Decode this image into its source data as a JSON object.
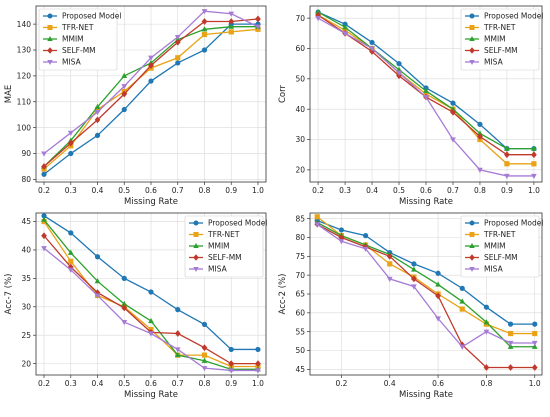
{
  "series_colors": {
    "Proposed Model": "#1f77b4",
    "TFR-NET": "#e8a317",
    "MMIM": "#2ca02c",
    "SELF-MM": "#c0392b",
    "MISA": "#a67bd6"
  },
  "series_markers": {
    "Proposed Model": "circle",
    "TFR-NET": "square",
    "MMIM": "triangle",
    "SELF-MM": "diamond",
    "MISA": "triangle-down"
  },
  "chart_data": [
    {
      "type": "line",
      "panel": "top-left",
      "xlabel": "Missing Rate",
      "ylabel": "MAE",
      "xlim": [
        0.17,
        1.03
      ],
      "ylim": [
        79,
        147
      ],
      "xticks": [
        "0.2",
        "0.3",
        "0.4",
        "0.5",
        "0.6",
        "0.7",
        "0.8",
        "0.9",
        "1.0"
      ],
      "yticks": [
        "80",
        "90",
        "100",
        "110",
        "120",
        "130",
        "140"
      ],
      "xtick_values": [
        0.2,
        0.3,
        0.4,
        0.5,
        0.6,
        0.7,
        0.8,
        0.9,
        1.0
      ],
      "ytick_values": [
        80,
        90,
        100,
        110,
        120,
        130,
        140
      ],
      "grid": true,
      "legend": "top-left",
      "x": [
        0.2,
        0.3,
        0.4,
        0.5,
        0.6,
        0.7,
        0.8,
        0.9,
        1.0
      ],
      "series": [
        {
          "name": "Proposed Model",
          "values": [
            82,
            90,
            97,
            107,
            118,
            125,
            130,
            140,
            140
          ]
        },
        {
          "name": "TFR-NET",
          "values": [
            84,
            93,
            107,
            114,
            123,
            127,
            136,
            137,
            138
          ]
        },
        {
          "name": "MMIM",
          "values": [
            85,
            95,
            108,
            120,
            125,
            134,
            138,
            139,
            139
          ]
        },
        {
          "name": "SELF-MM",
          "values": [
            85,
            94,
            103,
            113,
            124,
            133,
            141,
            141,
            142
          ]
        },
        {
          "name": "MISA",
          "values": [
            90,
            98,
            106,
            116,
            127,
            135,
            145,
            144,
            139
          ]
        }
      ]
    },
    {
      "type": "line",
      "panel": "top-right",
      "xlabel": "Missing Rate",
      "ylabel": "Corr",
      "xlim": [
        0.17,
        1.03
      ],
      "ylim": [
        16,
        74
      ],
      "xticks": [
        "0.2",
        "0.3",
        "0.4",
        "0.5",
        "0.6",
        "0.7",
        "0.8",
        "0.9",
        "1.0"
      ],
      "yticks": [
        "20",
        "30",
        "40",
        "50",
        "60",
        "70"
      ],
      "xtick_values": [
        0.2,
        0.3,
        0.4,
        0.5,
        0.6,
        0.7,
        0.8,
        0.9,
        1.0
      ],
      "ytick_values": [
        20,
        30,
        40,
        50,
        60,
        70
      ],
      "grid": true,
      "legend": "top-right",
      "x": [
        0.2,
        0.3,
        0.4,
        0.5,
        0.6,
        0.7,
        0.8,
        0.9,
        1.0
      ],
      "series": [
        {
          "name": "Proposed Model",
          "values": [
            72,
            68,
            62,
            55,
            47,
            42,
            35,
            27,
            27
          ]
        },
        {
          "name": "TFR-NET",
          "values": [
            71,
            66,
            60,
            52,
            45,
            40,
            30,
            22,
            22
          ]
        },
        {
          "name": "MMIM",
          "values": [
            72,
            67,
            60,
            53,
            46,
            40,
            32,
            27,
            27
          ]
        },
        {
          "name": "SELF-MM",
          "values": [
            71,
            65,
            59,
            51,
            44,
            39,
            31,
            25,
            25
          ]
        },
        {
          "name": "MISA",
          "values": [
            70,
            65,
            60,
            52,
            44,
            30,
            20,
            18,
            18
          ]
        }
      ]
    },
    {
      "type": "line",
      "panel": "bottom-left",
      "xlabel": "Missing Rate",
      "ylabel": "Acc-7 (%)",
      "xlim": [
        0.17,
        1.03
      ],
      "ylim": [
        18,
        46.5
      ],
      "xticks": [
        "0.2",
        "0.3",
        "0.4",
        "0.5",
        "0.6",
        "0.7",
        "0.8",
        "0.9",
        "1.0"
      ],
      "yticks": [
        "20",
        "25",
        "30",
        "35",
        "40",
        "45"
      ],
      "xtick_values": [
        0.2,
        0.3,
        0.4,
        0.5,
        0.6,
        0.7,
        0.8,
        0.9,
        1.0
      ],
      "ytick_values": [
        20,
        25,
        30,
        35,
        40,
        45
      ],
      "grid": true,
      "legend": "top-right",
      "x": [
        0.2,
        0.3,
        0.4,
        0.5,
        0.6,
        0.7,
        0.8,
        0.9,
        1.0
      ],
      "series": [
        {
          "name": "Proposed Model",
          "values": [
            46,
            43,
            38.8,
            35,
            32.6,
            29.5,
            26.9,
            22.5,
            22.5
          ]
        },
        {
          "name": "TFR-NET",
          "values": [
            45,
            38,
            32,
            30,
            26,
            21.5,
            21.5,
            19.5,
            19.5
          ]
        },
        {
          "name": "MMIM",
          "values": [
            45.3,
            39.5,
            34.5,
            30.5,
            27.5,
            21.5,
            20.5,
            19,
            19
          ]
        },
        {
          "name": "SELF-MM",
          "values": [
            42.5,
            37,
            32.5,
            29.8,
            25.5,
            25.3,
            22.8,
            20,
            20
          ]
        },
        {
          "name": "MISA",
          "values": [
            40.3,
            36.5,
            32,
            27.3,
            25.3,
            22.5,
            19.2,
            18.8,
            18.8
          ]
        }
      ]
    },
    {
      "type": "line",
      "panel": "bottom-right",
      "xlabel": "Missing Rate",
      "ylabel": "Acc-2 (%)",
      "xlim": [
        0.07,
        1.03
      ],
      "ylim": [
        43.5,
        86.5
      ],
      "xticks": [
        "0.2",
        "0.4",
        "0.6",
        "0.8",
        "1.0"
      ],
      "yticks": [
        "45",
        "50",
        "55",
        "60",
        "65",
        "70",
        "75",
        "80",
        "85"
      ],
      "xtick_values": [
        0.2,
        0.4,
        0.6,
        0.8,
        1.0
      ],
      "ytick_values": [
        45,
        50,
        55,
        60,
        65,
        70,
        75,
        80,
        85
      ],
      "grid": true,
      "legend": "top-right",
      "x": [
        0.1,
        0.2,
        0.3,
        0.4,
        0.5,
        0.6,
        0.7,
        0.8,
        0.9,
        1.0
      ],
      "series": [
        {
          "name": "Proposed Model",
          "values": [
            84.5,
            82,
            80.5,
            76,
            73,
            70.5,
            66.5,
            61.5,
            57,
            57
          ]
        },
        {
          "name": "TFR-NET",
          "values": [
            85.5,
            80.5,
            78,
            73,
            69.5,
            65,
            61,
            57,
            54.5,
            54.5
          ]
        },
        {
          "name": "MMIM",
          "values": [
            84,
            80.5,
            78,
            75.5,
            71.5,
            67.5,
            63,
            57.5,
            51,
            51
          ]
        },
        {
          "name": "SELF-MM",
          "values": [
            83.5,
            80,
            77.5,
            75,
            69,
            64.5,
            51.5,
            45.5,
            45.5,
            45.5
          ]
        },
        {
          "name": "MISA",
          "values": [
            83.5,
            79,
            77,
            69,
            67,
            58.5,
            51,
            55,
            52,
            52
          ]
        }
      ]
    }
  ]
}
